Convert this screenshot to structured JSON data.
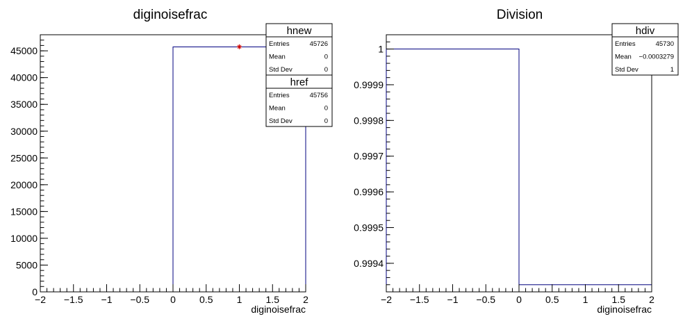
{
  "chart_data": [
    {
      "type": "histogram",
      "title": "diginoisefrac",
      "xlabel": "diginoisefrac",
      "ylabel": "",
      "xlim": [
        -2,
        2
      ],
      "ylim": [
        0,
        48000
      ],
      "x_ticks": [
        "−2",
        "−1.5",
        "−1",
        "−0.5",
        "0",
        "0.5",
        "1",
        "1.5",
        "2"
      ],
      "y_ticks": [
        "0",
        "5000",
        "10000",
        "15000",
        "20000",
        "25000",
        "30000",
        "35000",
        "40000",
        "45000"
      ],
      "series": [
        {
          "name": "hnew",
          "color": "#00007f",
          "style": "step",
          "bins": [
            {
              "x0": 0,
              "x1": 2,
              "y": 45726
            }
          ]
        },
        {
          "name": "href",
          "color": "#cc0000",
          "style": "marker",
          "points": [
            {
              "x": 1,
              "y": 45756
            }
          ]
        }
      ],
      "stats": [
        {
          "name": "hnew",
          "rows": [
            {
              "label": "Entries",
              "value": "45726"
            },
            {
              "label": "Mean",
              "value": "0"
            },
            {
              "label": "Std Dev",
              "value": "0"
            }
          ]
        },
        {
          "name": "href",
          "rows": [
            {
              "label": "Entries",
              "value": "45756"
            },
            {
              "label": "Mean",
              "value": "0"
            },
            {
              "label": "Std Dev",
              "value": "0"
            }
          ]
        }
      ]
    },
    {
      "type": "histogram",
      "title": "Division",
      "xlabel": "diginoisefrac",
      "ylabel": "",
      "xlim": [
        -2,
        2
      ],
      "ylim": [
        0.99932,
        1.00004
      ],
      "x_ticks": [
        "−2",
        "−1.5",
        "−1",
        "−0.5",
        "0",
        "0.5",
        "1",
        "1.5",
        "2"
      ],
      "y_ticks": [
        "0.9994",
        "0.9995",
        "0.9996",
        "0.9997",
        "0.9998",
        "0.9999",
        "1"
      ],
      "series": [
        {
          "name": "hdiv",
          "color": "#00007f",
          "style": "step",
          "bins": [
            {
              "x0": -2,
              "x1": 0,
              "y": 1
            },
            {
              "x0": 0,
              "x1": 2,
              "y": 0.99934
            }
          ]
        }
      ],
      "stats": [
        {
          "name": "hdiv",
          "rows": [
            {
              "label": "Entries",
              "value": "45730"
            },
            {
              "label": "Mean",
              "value": "−0.0003279"
            },
            {
              "label": "Std Dev",
              "value": "1"
            }
          ]
        }
      ]
    }
  ]
}
